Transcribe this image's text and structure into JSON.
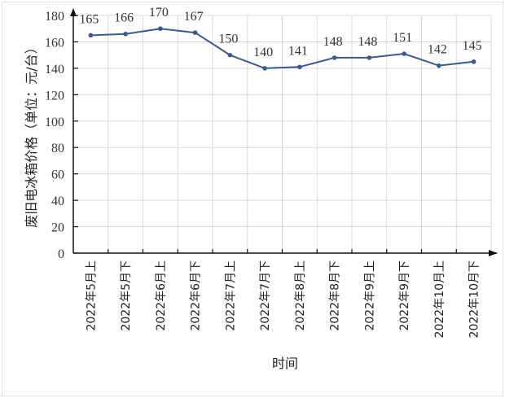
{
  "chart_data": {
    "type": "line",
    "title": "",
    "xlabel": "时间",
    "ylabel": "废旧电冰箱价格（单位：元/台）",
    "categories": [
      "2022年5月上",
      "2022年5月下",
      "2022年6月上",
      "2022年6月下",
      "2022年7月上",
      "2022年7月下",
      "2022年8月上",
      "2022年8月下",
      "2022年9月上",
      "2022年9月下",
      "2022年10月上",
      "2022年10月下"
    ],
    "series": [
      {
        "name": "废旧电冰箱价格",
        "values": [
          165,
          166,
          170,
          167,
          150,
          140,
          141,
          148,
          148,
          151,
          142,
          145
        ],
        "color": "#3b5a8c"
      }
    ],
    "data_labels": [
      "165",
      "166",
      "170",
      "167",
      "150",
      "140",
      "141",
      "148",
      "148",
      "151",
      "142",
      "145"
    ],
    "ylim": [
      0,
      180
    ],
    "yticks": [
      "0",
      "20",
      "40",
      "60",
      "80",
      "100",
      "120",
      "140",
      "160",
      "180"
    ],
    "grid": true,
    "legend": "none",
    "colors": {
      "line": "#3b5a8c",
      "grid": "#d9d9d9",
      "axis": "#111111"
    }
  }
}
